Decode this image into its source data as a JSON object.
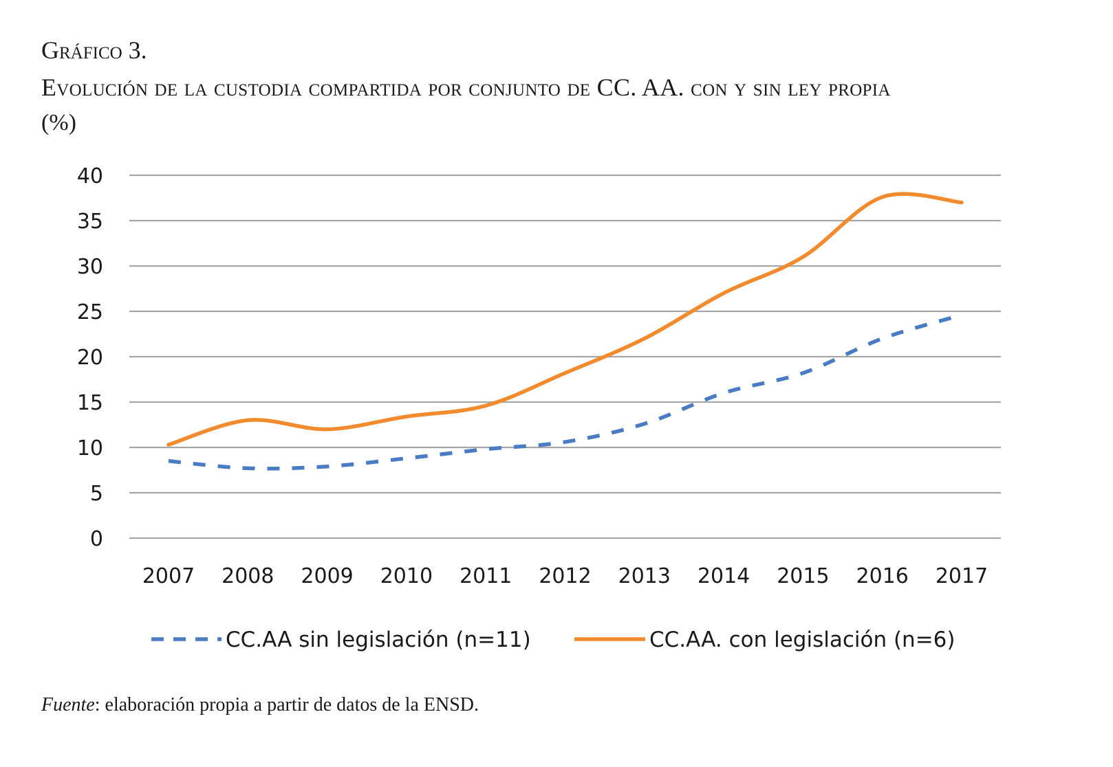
{
  "caption": {
    "label": "Gráfico 3.",
    "title": "Evolución de la custodia compartida por conjunto de CC. AA. con y sin ley propia",
    "unit": "(%)"
  },
  "source": {
    "label": "Fuente",
    "text": ": elaboración propia a partir de datos de la ENSD."
  },
  "chart_data": {
    "type": "line",
    "title": "Evolución de la custodia compartida por conjunto de CC. AA. con y sin ley propia (%)",
    "xlabel": "",
    "ylabel": "",
    "x": [
      "2007",
      "2008",
      "2009",
      "2010",
      "2011",
      "2012",
      "2013",
      "2014",
      "2015",
      "2016",
      "2017"
    ],
    "ylim": [
      0,
      40
    ],
    "yticks": [
      0,
      5,
      10,
      15,
      20,
      25,
      30,
      35,
      40
    ],
    "grid": true,
    "legend_position": "bottom",
    "series": [
      {
        "name": "CC.AA sin legislación (n=11)",
        "color": "#4a7cc4",
        "style": "dashed",
        "values": [
          8.5,
          7.7,
          7.9,
          8.8,
          9.8,
          10.6,
          12.6,
          16.0,
          18.2,
          22.0,
          24.6
        ]
      },
      {
        "name": "CC.AA. con legislación (n=6)",
        "color": "#f28a2e",
        "style": "solid",
        "values": [
          10.3,
          13.0,
          12.0,
          13.4,
          14.6,
          18.2,
          22.0,
          27.0,
          31.0,
          37.6,
          37.0
        ]
      }
    ],
    "gridline_color": "#a6a6a6"
  }
}
